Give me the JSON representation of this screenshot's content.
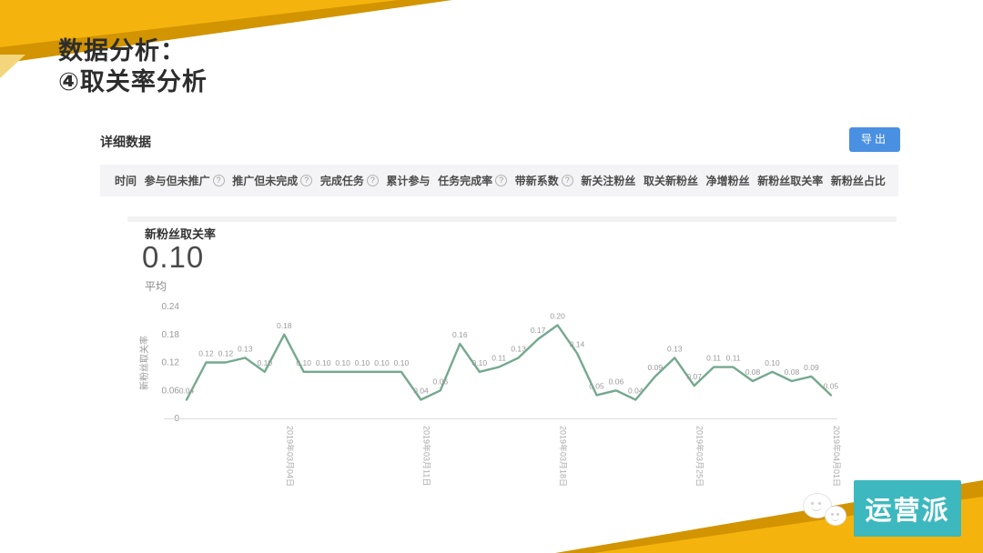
{
  "slide": {
    "title_line1": "数据分析：",
    "title_line2": "④取关率分析"
  },
  "panel": {
    "section_title": "详细数据",
    "export_label": "导出",
    "help_glyph": "?",
    "table_columns": [
      {
        "label": "时间",
        "help": false
      },
      {
        "label": "参与但未推广",
        "help": true
      },
      {
        "label": "推广但未完成",
        "help": true
      },
      {
        "label": "完成任务",
        "help": true
      },
      {
        "label": "累计参与",
        "help": false
      },
      {
        "label": "任务完成率",
        "help": true
      },
      {
        "label": "带新系数",
        "help": true
      },
      {
        "label": "新关注粉丝",
        "help": false
      },
      {
        "label": "取关新粉丝",
        "help": false
      },
      {
        "label": "净增粉丝",
        "help": false
      },
      {
        "label": "新粉丝取关率",
        "help": false
      },
      {
        "label": "新粉丝占比",
        "help": false
      }
    ]
  },
  "chart_data": {
    "type": "line",
    "title": "新粉丝取关率",
    "average_value": "0.10",
    "average_label": "平均",
    "ylabel": "新粉丝取关率",
    "ylim": [
      0,
      0.24
    ],
    "yticks": [
      0,
      0.06,
      0.12,
      0.18,
      0.24
    ],
    "grid": false,
    "legend": "none",
    "values": [
      0.04,
      0.12,
      0.12,
      0.13,
      0.1,
      0.18,
      0.1,
      0.1,
      0.1,
      0.1,
      0.1,
      0.1,
      0.04,
      0.06,
      0.16,
      0.1,
      0.11,
      0.13,
      0.17,
      0.2,
      0.14,
      0.05,
      0.06,
      0.04,
      0.09,
      0.13,
      0.07,
      0.11,
      0.11,
      0.08,
      0.1,
      0.08,
      0.09,
      0.05
    ],
    "x_tick_labels": [
      {
        "index": 5,
        "label": "2019年03月04日"
      },
      {
        "index": 12,
        "label": "2019年03月11日"
      },
      {
        "index": 19,
        "label": "2019年03月18日"
      },
      {
        "index": 26,
        "label": "2019年03月25日"
      },
      {
        "index": 33,
        "label": "2019年04月01日"
      }
    ]
  },
  "footer": {
    "brand": "运营派"
  },
  "colors": {
    "yellow_bright": "#F5B40D",
    "yellow_dark": "#D29400",
    "yellow_fold": "#F3D67B",
    "export_blue": "#4A90E2",
    "brand_teal": "#3CB8BE",
    "line_green": "#74A98E",
    "axis_gray": "#dddddd",
    "label_gray": "#9a9a9a"
  }
}
